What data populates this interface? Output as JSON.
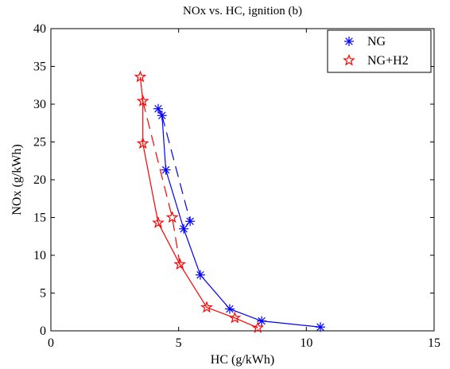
{
  "chart_data": {
    "type": "line",
    "title": "NOx vs. HC, ignition (b)",
    "xlabel": "HC (g/kWh)",
    "ylabel": "NOx (g/kWh)",
    "xlim": [
      0,
      15
    ],
    "ylim": [
      0,
      40
    ],
    "xticks": [
      0,
      5,
      10,
      15
    ],
    "yticks": [
      0,
      5,
      10,
      15,
      20,
      25,
      30,
      35,
      40
    ],
    "grid": false,
    "legend_position": "top-right",
    "series": [
      {
        "name": "NG",
        "color": "#0000ff",
        "marker": "asterisk",
        "solid": [
          {
            "x": 4.2,
            "y": 29.4
          },
          {
            "x": 4.35,
            "y": 28.5
          },
          {
            "x": 4.5,
            "y": 21.3
          },
          {
            "x": 5.2,
            "y": 13.5
          },
          {
            "x": 5.85,
            "y": 7.4
          },
          {
            "x": 7.0,
            "y": 2.9
          },
          {
            "x": 8.25,
            "y": 1.3
          },
          {
            "x": 10.55,
            "y": 0.5
          }
        ],
        "dashed": [
          {
            "x": 4.35,
            "y": 28.5
          },
          {
            "x": 5.45,
            "y": 14.5
          },
          {
            "x": 5.2,
            "y": 13.5
          }
        ]
      },
      {
        "name": "NG+H2",
        "color": "#ff0000",
        "marker": "star",
        "solid": [
          {
            "x": 3.5,
            "y": 33.6
          },
          {
            "x": 3.6,
            "y": 30.4
          },
          {
            "x": 3.6,
            "y": 24.8
          },
          {
            "x": 4.2,
            "y": 14.3
          },
          {
            "x": 5.05,
            "y": 8.8
          },
          {
            "x": 6.1,
            "y": 3.1
          },
          {
            "x": 7.2,
            "y": 1.7
          },
          {
            "x": 8.1,
            "y": 0.4
          }
        ],
        "dashed": [
          {
            "x": 3.6,
            "y": 30.4
          },
          {
            "x": 4.75,
            "y": 15.0
          },
          {
            "x": 5.05,
            "y": 8.8
          }
        ]
      }
    ]
  }
}
